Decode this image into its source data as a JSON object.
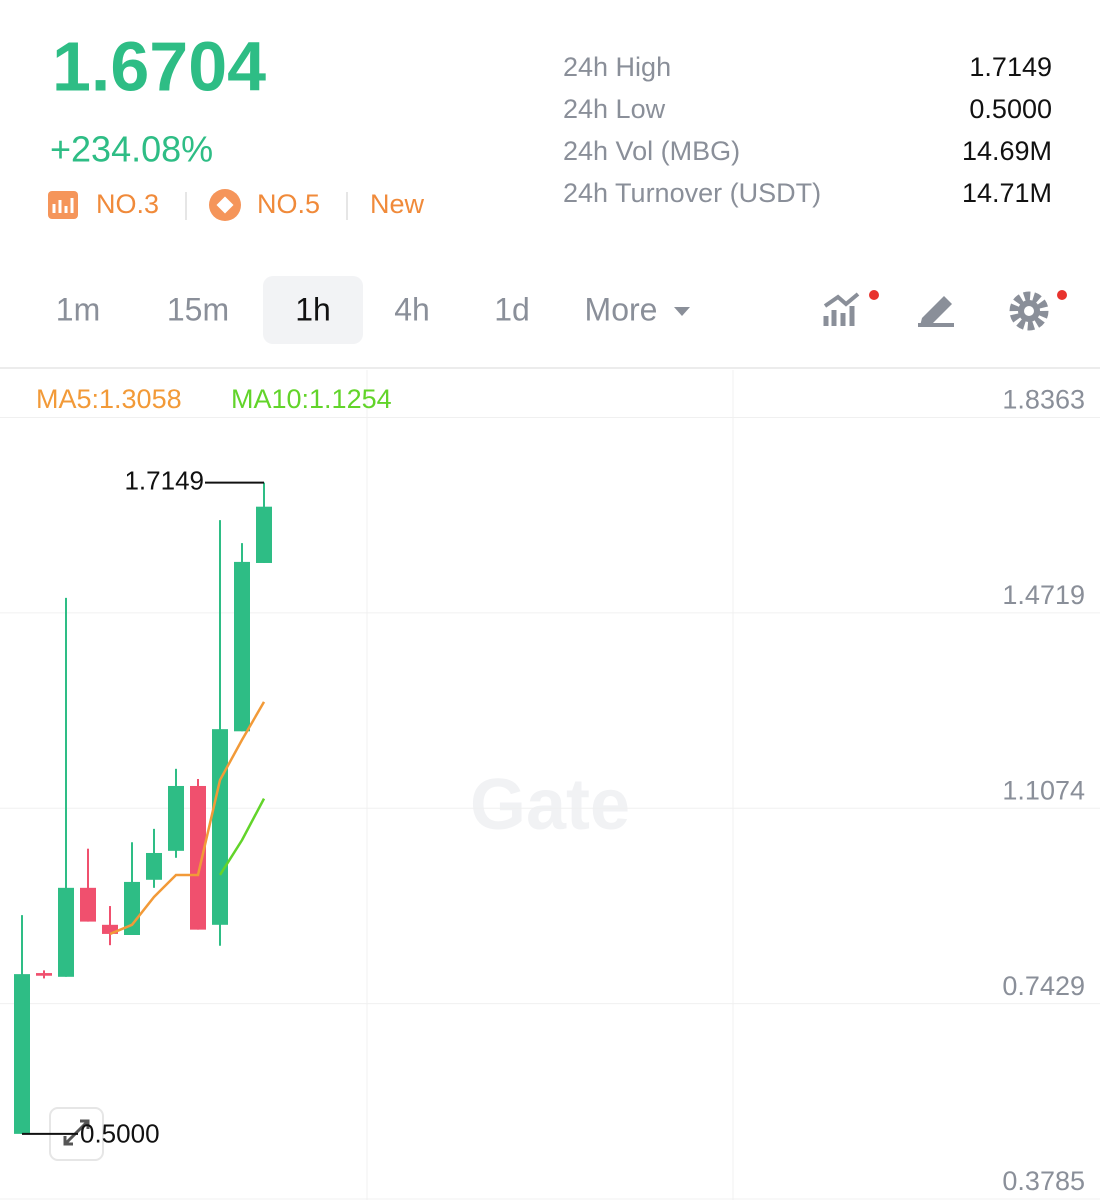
{
  "header": {
    "price": "1.6704",
    "change": "+234.08%",
    "badges": [
      "NO.3",
      "NO.5",
      "New"
    ],
    "stats": [
      {
        "label": "24h High",
        "value": "1.7149"
      },
      {
        "label": "24h Low",
        "value": "0.5000"
      },
      {
        "label": "24h Vol (MBG)",
        "value": "14.69M"
      },
      {
        "label": "24h Turnover (USDT)",
        "value": "14.71M"
      }
    ]
  },
  "tabs": [
    "1m",
    "15m",
    "1h",
    "4h",
    "1d",
    "More"
  ],
  "selected_tab": "1h",
  "watermark": "Gate",
  "chart_data": {
    "type": "candlestick",
    "open": [
      0.5,
      0.8,
      0.793,
      0.959,
      0.89,
      0.871,
      0.974,
      1.028,
      1.149,
      0.89,
      1.251,
      1.565
    ],
    "high": [
      0.908,
      0.805,
      1.5,
      1.032,
      0.925,
      1.044,
      1.069,
      1.181,
      1.162,
      1.645,
      1.602,
      1.7149
    ],
    "low": [
      0.5,
      0.79,
      0.793,
      0.896,
      0.852,
      0.871,
      0.959,
      1.015,
      0.881,
      0.851,
      1.251,
      1.565
    ],
    "close": [
      0.798,
      0.795,
      0.959,
      0.896,
      0.873,
      0.97,
      1.024,
      1.149,
      0.881,
      1.255,
      1.567,
      1.67
    ],
    "up_color": "#2ebd85",
    "down_color": "#f0506e",
    "series": [
      {
        "name": "MA5:1.3058",
        "color": "#f29a38",
        "values": [
          null,
          null,
          null,
          null,
          0.873,
          0.89,
          0.942,
          0.983,
          0.983,
          1.16,
          1.235,
          1.3058
        ]
      },
      {
        "name": "MA10:1.1254",
        "color": "#62d42a",
        "values": [
          null,
          null,
          null,
          null,
          null,
          null,
          null,
          null,
          null,
          0.983,
          1.048,
          1.1254
        ]
      }
    ],
    "annotations": [
      {
        "text": "1.7149"
      },
      {
        "text": "0.5000"
      }
    ],
    "ylim": [
      0.3785,
      1.925
    ],
    "yticks": [
      1.8363,
      1.4719,
      1.1074,
      0.7429,
      0.3785
    ],
    "grid": true
  }
}
